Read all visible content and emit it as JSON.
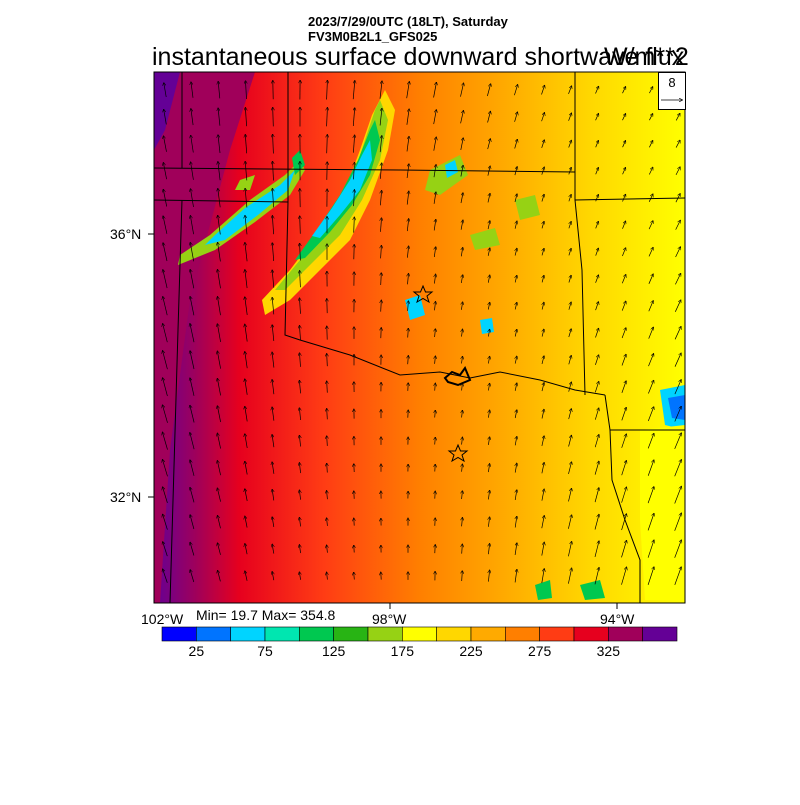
{
  "header": {
    "datetime": "2023/7/29/0UTC (18LT), Saturday",
    "model": "FV3M0B2L1_GFS025",
    "title": "instantaneous surface downward shortwave flux",
    "units": "W/m**2"
  },
  "reference_vector": {
    "label": "8"
  },
  "axes": {
    "lat_labels": [
      {
        "text": "36°N",
        "lat": 36
      },
      {
        "text": "32°N",
        "lat": 32
      }
    ],
    "lon_labels": [
      {
        "text": "102°W",
        "lon": -102
      },
      {
        "text": "98°W",
        "lon": -98
      },
      {
        "text": "94°W",
        "lon": -94
      }
    ]
  },
  "stats": {
    "text": "Min= 19.7 Max= 354.8",
    "min": 19.7,
    "max": 354.8
  },
  "colorbar": {
    "colors": [
      "#0000ff",
      "#0074ff",
      "#00d4ff",
      "#00e6b0",
      "#00c850",
      "#28b414",
      "#96d214",
      "#ffff00",
      "#ffd700",
      "#ffaa00",
      "#ff7f00",
      "#ff3c14",
      "#e6001e",
      "#a0005a",
      "#640096"
    ],
    "labels": [
      "25",
      "75",
      "125",
      "175",
      "225",
      "275",
      "325"
    ]
  },
  "markers": [
    {
      "name": "star-marker-oklahoma-city"
    },
    {
      "name": "star-marker-dallas"
    }
  ],
  "colors": {
    "land_outline": "#000000",
    "text": "#000000"
  }
}
